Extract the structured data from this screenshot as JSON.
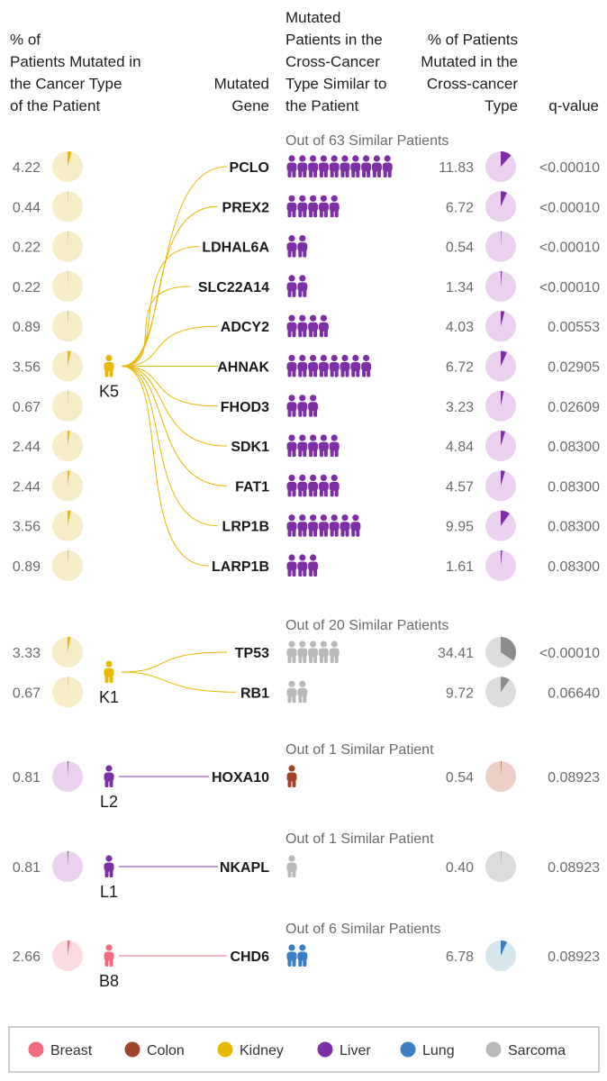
{
  "header": {
    "col1": [
      "% of",
      "Patients Mutated in",
      "the Cancer Type",
      "of the Patient"
    ],
    "col2": [
      "Mutated",
      "Gene"
    ],
    "col3": [
      "Mutated",
      "Patients in the",
      "Cross-Cancer",
      "Type Similar to",
      "the Patient"
    ],
    "col4": [
      "% of Patients",
      "Mutated in the",
      "Cross-cancer",
      "Type"
    ],
    "col5": [
      "q-value"
    ]
  },
  "colors": {
    "Breast": "#f26a7e",
    "Colon": "#a0432a",
    "Kidney": "#e9b800",
    "Liver": "#7d2fa6",
    "Lung": "#3b7ec4",
    "Sarcoma": "#b9b9b9"
  },
  "chart_data": {
    "type": "table",
    "groups": [
      {
        "patient": "K5",
        "patient_type": "Kidney",
        "similar_type": "Liver",
        "out_of_label": "Out of 63 Similar Patients",
        "rows": [
          {
            "pct_own": "4.22",
            "gene": "PCLO",
            "n_icons": 10,
            "pct_cross": "11.83",
            "q": "<0.00010"
          },
          {
            "pct_own": "0.44",
            "gene": "PREX2",
            "n_icons": 5,
            "pct_cross": "6.72",
            "q": "<0.00010"
          },
          {
            "pct_own": "0.22",
            "gene": "LDHAL6A",
            "n_icons": 2,
            "pct_cross": "0.54",
            "q": "<0.00010"
          },
          {
            "pct_own": "0.22",
            "gene": "SLC22A14",
            "n_icons": 2,
            "pct_cross": "1.34",
            "q": "<0.00010"
          },
          {
            "pct_own": "0.89",
            "gene": "ADCY2",
            "n_icons": 4,
            "pct_cross": "4.03",
            "q": "0.00553"
          },
          {
            "pct_own": "3.56",
            "gene": "AHNAK",
            "n_icons": 8,
            "pct_cross": "6.72",
            "q": "0.02905"
          },
          {
            "pct_own": "0.67",
            "gene": "FHOD3",
            "n_icons": 3,
            "pct_cross": "3.23",
            "q": "0.02609"
          },
          {
            "pct_own": "2.44",
            "gene": "SDK1",
            "n_icons": 5,
            "pct_cross": "4.84",
            "q": "0.08300"
          },
          {
            "pct_own": "2.44",
            "gene": "FAT1",
            "n_icons": 5,
            "pct_cross": "4.57",
            "q": "0.08300"
          },
          {
            "pct_own": "3.56",
            "gene": "LRP1B",
            "n_icons": 7,
            "pct_cross": "9.95",
            "q": "0.08300"
          },
          {
            "pct_own": "0.89",
            "gene": "LARP1B",
            "n_icons": 3,
            "pct_cross": "1.61",
            "q": "0.08300"
          }
        ]
      },
      {
        "patient": "K1",
        "patient_type": "Kidney",
        "similar_type": "Sarcoma",
        "out_of_label": "Out of 20 Similar Patients",
        "rows": [
          {
            "pct_own": "3.33",
            "gene": "TP53",
            "n_icons": 5,
            "pct_cross": "34.41",
            "q": "<0.00010"
          },
          {
            "pct_own": "0.67",
            "gene": "RB1",
            "n_icons": 2,
            "pct_cross": "9.72",
            "q": "0.06640"
          }
        ]
      },
      {
        "patient": "L2",
        "patient_type": "Liver",
        "similar_type": "Colon",
        "out_of_label": "Out of 1 Similar Patient",
        "rows": [
          {
            "pct_own": "0.81",
            "gene": "HOXA10",
            "n_icons": 1,
            "pct_cross": "0.54",
            "q": "0.08923"
          }
        ]
      },
      {
        "patient": "L1",
        "patient_type": "Liver",
        "similar_type": "Sarcoma",
        "out_of_label": "Out of 1 Similar Patient",
        "rows": [
          {
            "pct_own": "0.81",
            "gene": "NKAPL",
            "n_icons": 1,
            "pct_cross": "0.40",
            "q": "0.08923"
          }
        ]
      },
      {
        "patient": "B8",
        "patient_type": "Breast",
        "similar_type": "Lung",
        "out_of_label": "Out of 6 Similar Patients",
        "rows": [
          {
            "pct_own": "2.66",
            "gene": "CHD6",
            "n_icons": 2,
            "pct_cross": "6.78",
            "q": "0.08923"
          }
        ]
      }
    ]
  },
  "legend": [
    {
      "label": "Breast",
      "color": "#f26a7e"
    },
    {
      "label": "Colon",
      "color": "#a0432a"
    },
    {
      "label": "Kidney",
      "color": "#e9b800"
    },
    {
      "label": "Liver",
      "color": "#7d2fa6"
    },
    {
      "label": "Lung",
      "color": "#3b7ec4"
    },
    {
      "label": "Sarcoma",
      "color": "#b9b9b9"
    }
  ]
}
